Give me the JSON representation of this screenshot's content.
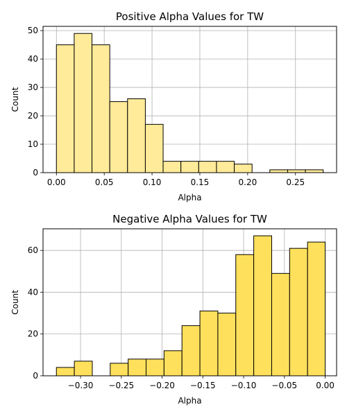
{
  "chart_data": [
    {
      "type": "bar",
      "title": "Positive Alpha Values for TW",
      "xlabel": "Alpha",
      "ylabel": "Count",
      "bar_color": "#ffeb99",
      "edge_color": "#000000",
      "grid": true,
      "xlim": [
        -0.014,
        0.293
      ],
      "ylim": [
        0,
        51.5
      ],
      "xticks": [
        0.0,
        0.05,
        0.1,
        0.15,
        0.2,
        0.25
      ],
      "xtick_labels": [
        "0.00",
        "0.05",
        "0.10",
        "0.15",
        "0.20",
        "0.25"
      ],
      "yticks": [
        0,
        10,
        20,
        30,
        40,
        50
      ],
      "ytick_labels": [
        "0",
        "10",
        "20",
        "30",
        "40",
        "50"
      ],
      "bin_edges": [
        0.0,
        0.0186,
        0.0372,
        0.0558,
        0.0744,
        0.093,
        0.1116,
        0.1302,
        0.1488,
        0.1674,
        0.186,
        0.2046,
        0.2232,
        0.2418,
        0.2604,
        0.279
      ],
      "values": [
        45,
        49,
        45,
        25,
        26,
        17,
        4,
        4,
        4,
        4,
        3,
        0,
        1,
        1,
        1
      ]
    },
    {
      "type": "bar",
      "title": "Negative Alpha Values for TW",
      "xlabel": "Alpha",
      "ylabel": "Count",
      "bar_color": "#ffe05c",
      "edge_color": "#000000",
      "grid": true,
      "xlim": [
        -0.346,
        0.014
      ],
      "ylim": [
        0,
        70.35
      ],
      "xticks": [
        -0.3,
        -0.25,
        -0.2,
        -0.15,
        -0.1,
        -0.05,
        0.0
      ],
      "xtick_labels": [
        "−0.30",
        "−0.25",
        "−0.20",
        "−0.15",
        "−0.10",
        "−0.05",
        "0.00"
      ],
      "yticks": [
        0,
        20,
        40,
        60
      ],
      "ytick_labels": [
        "0",
        "20",
        "40",
        "60"
      ],
      "bin_edges": [
        -0.3296,
        -0.3076,
        -0.2856,
        -0.2636,
        -0.2416,
        -0.2196,
        -0.1976,
        -0.1756,
        -0.1536,
        -0.1316,
        -0.1096,
        -0.0876,
        -0.0656,
        -0.0436,
        -0.0216,
        0.0
      ],
      "values": [
        4,
        7,
        0,
        6,
        8,
        8,
        12,
        24,
        31,
        30,
        58,
        67,
        49,
        61,
        64
      ]
    }
  ]
}
